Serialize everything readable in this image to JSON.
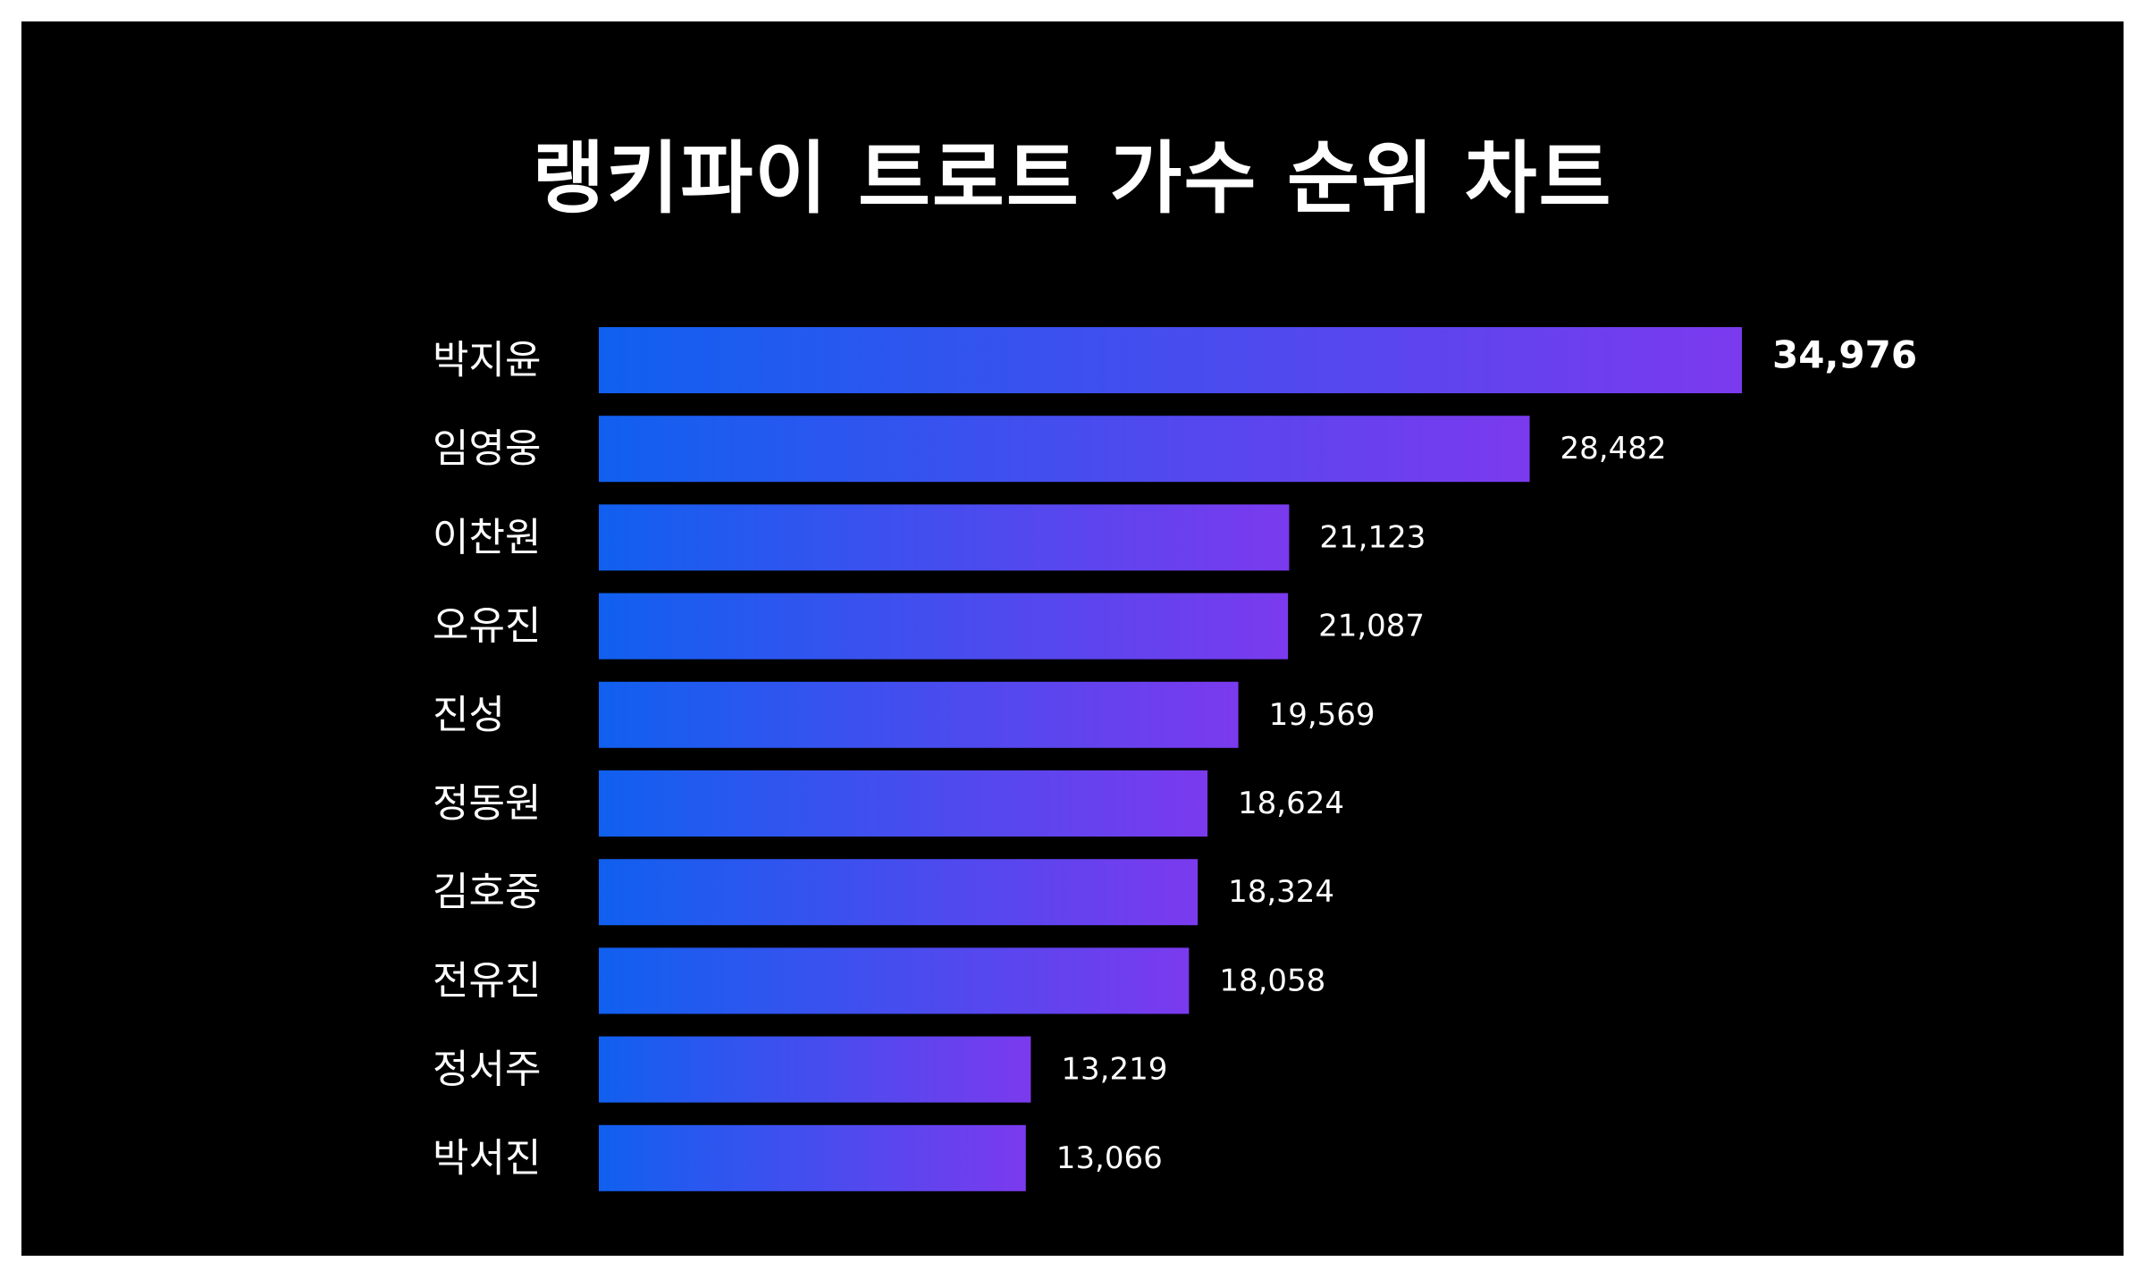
{
  "chart_data": {
    "type": "bar",
    "orientation": "horizontal",
    "title": "랭키파이 트로트 가수 순위 차트",
    "categories": [
      "박지윤",
      "임영웅",
      "이찬원",
      "오유진",
      "진성",
      "정동원",
      "김호중",
      "전유진",
      "정서주",
      "박서진"
    ],
    "values": [
      34976,
      28482,
      21123,
      21087,
      19569,
      18624,
      18324,
      18058,
      13219,
      13066
    ],
    "value_labels": [
      "34,976",
      "28,482",
      "21,123",
      "21,087",
      "19,569",
      "18,624",
      "18,324",
      "18,058",
      "13,219",
      "13,066"
    ],
    "xlabel": "",
    "ylabel": "",
    "xlim": [
      0,
      34976
    ],
    "grid": false,
    "legend": "none",
    "colors": {
      "background": "#000000",
      "text": "#ffffff",
      "bar_gradient_start": "#1060ef",
      "bar_gradient_end": "#7b3aee"
    }
  }
}
